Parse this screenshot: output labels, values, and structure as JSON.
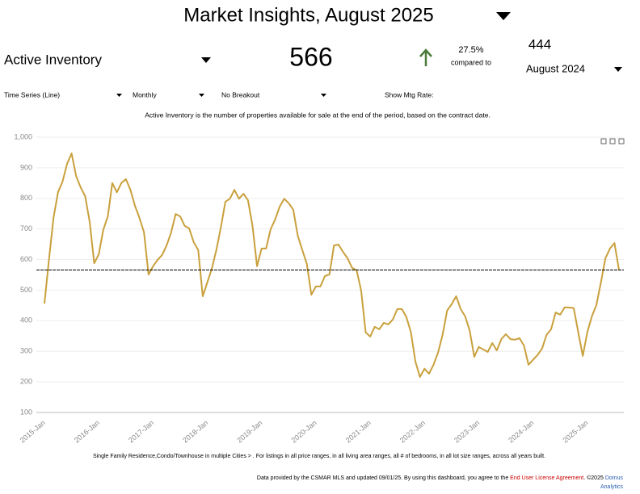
{
  "header": {
    "title": "Market Insights, August 2025"
  },
  "kpi": {
    "metric": "Active Inventory",
    "value": "566",
    "change": "27.5%",
    "compared": "compared to",
    "prior_value": "444",
    "prior_period": "August 2024"
  },
  "controls": {
    "chart_type": "Time Series (Line)",
    "interval": "Monthly",
    "breakout": "No Breakout",
    "mtg_rate": "Show Mtg Rate:"
  },
  "description": "Active Inventory is the number of properties available for sale at the end of the period, based on the contract date.",
  "chart_data": {
    "type": "line",
    "categories": [
      "2015-Jan",
      null,
      null,
      null,
      null,
      null,
      null,
      null,
      null,
      null,
      null,
      null,
      "2016-Jan",
      null,
      null,
      null,
      null,
      null,
      null,
      null,
      null,
      null,
      null,
      null,
      "2017-Jan",
      null,
      null,
      null,
      null,
      null,
      null,
      null,
      null,
      null,
      null,
      null,
      "2018-Jan",
      null,
      null,
      null,
      null,
      null,
      null,
      null,
      null,
      null,
      null,
      null,
      "2019-Jan",
      null,
      null,
      null,
      null,
      null,
      null,
      null,
      null,
      null,
      null,
      null,
      "2020-Jan",
      null,
      null,
      null,
      null,
      null,
      null,
      null,
      null,
      null,
      null,
      null,
      "2021-Jan",
      null,
      null,
      null,
      null,
      null,
      null,
      null,
      null,
      null,
      null,
      null,
      "2022-Jan",
      null,
      null,
      null,
      null,
      null,
      null,
      null,
      null,
      null,
      null,
      null,
      "2023-Jan",
      null,
      null,
      null,
      null,
      null,
      null,
      null,
      null,
      null,
      null,
      null,
      "2024-Jan",
      null,
      null,
      null,
      null,
      null,
      null,
      null,
      null,
      null,
      null,
      null,
      "2025-Jan",
      null,
      null,
      null,
      null,
      null,
      null,
      null
    ],
    "values": [
      456,
      600,
      736,
      820,
      855,
      913,
      947,
      873,
      836,
      807,
      723,
      588,
      617,
      697,
      741,
      850,
      820,
      850,
      863,
      828,
      776,
      736,
      689,
      551,
      578,
      599,
      615,
      646,
      689,
      749,
      741,
      710,
      702,
      657,
      631,
      480,
      525,
      570,
      631,
      705,
      789,
      799,
      828,
      799,
      815,
      794,
      710,
      578,
      636,
      636,
      699,
      731,
      773,
      799,
      784,
      763,
      678,
      631,
      586,
      485,
      512,
      512,
      546,
      551,
      646,
      649,
      625,
      604,
      573,
      565,
      499,
      362,
      348,
      380,
      372,
      393,
      388,
      404,
      438,
      438,
      412,
      362,
      266,
      216,
      243,
      227,
      256,
      296,
      354,
      433,
      454,
      480,
      438,
      414,
      367,
      282,
      314,
      306,
      298,
      327,
      303,
      340,
      356,
      340,
      338,
      343,
      319,
      256,
      272,
      288,
      309,
      354,
      372,
      427,
      420,
      444,
      443,
      441,
      362,
      285,
      362,
      414,
      451,
      525,
      604,
      636,
      654,
      566
    ],
    "color": "#c9a03c",
    "reference_line": 566,
    "ylim": [
      100,
      1000
    ],
    "yticks": [
      100,
      200,
      300,
      400,
      500,
      600,
      700,
      800,
      900,
      {
        "value": 1000,
        "label": "1,000"
      }
    ],
    "grid": true
  },
  "footnote": "Single Family Residence,Condo/Townhouse in multiple Cities > . For listings in all price ranges, in all living area ranges, all # of bedrooms, in all lot size ranges, across all years built.",
  "footer": {
    "text": "Data provided by the CSMAR MLS and updated 09/01/25. By using this dashboard, you agree to the",
    "license": "End User License Agreement",
    "copyright": ". ©2025",
    "brand_1": "Domus",
    "brand_2": "Analytics"
  }
}
